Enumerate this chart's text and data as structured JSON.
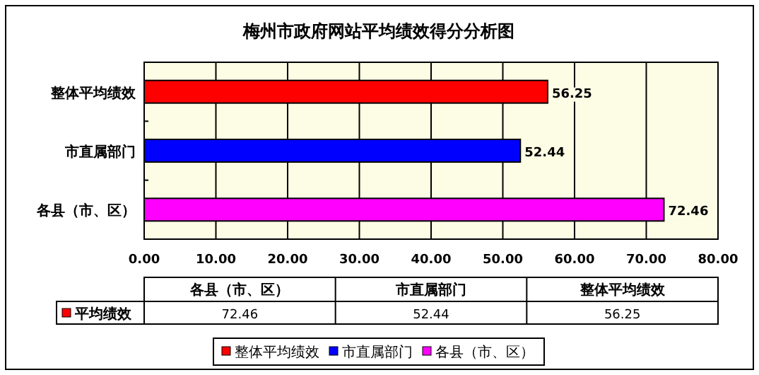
{
  "chart_data": {
    "type": "bar",
    "orientation": "horizontal",
    "title": "梅州市政府网站平均绩效得分分析图",
    "categories": [
      "整体平均绩效",
      "市直属部门",
      "各县（市、区）"
    ],
    "series": [
      {
        "name": "平均绩效",
        "colors": [
          "#ff0000",
          "#0000ff",
          "#ff00ff"
        ],
        "values": [
          56.25,
          52.44,
          72.46
        ]
      }
    ],
    "annotations": [
      "72.46",
      "52.44",
      "56.25"
    ],
    "xlim": [
      0,
      80
    ],
    "xticks": [
      {
        "value": 0,
        "label": "0.00"
      },
      {
        "value": 10,
        "label": "10.00"
      },
      {
        "value": 20,
        "label": "20.00"
      },
      {
        "value": 30,
        "label": "30.00"
      },
      {
        "value": 40,
        "label": "40.00"
      },
      {
        "value": 50,
        "label": "50.00"
      },
      {
        "value": 60,
        "label": "60.00"
      },
      {
        "value": 70,
        "label": "70.00"
      },
      {
        "value": 80,
        "label": "80.00"
      }
    ],
    "grid": "x",
    "data_labels": true,
    "legend": "bottom"
  }
}
